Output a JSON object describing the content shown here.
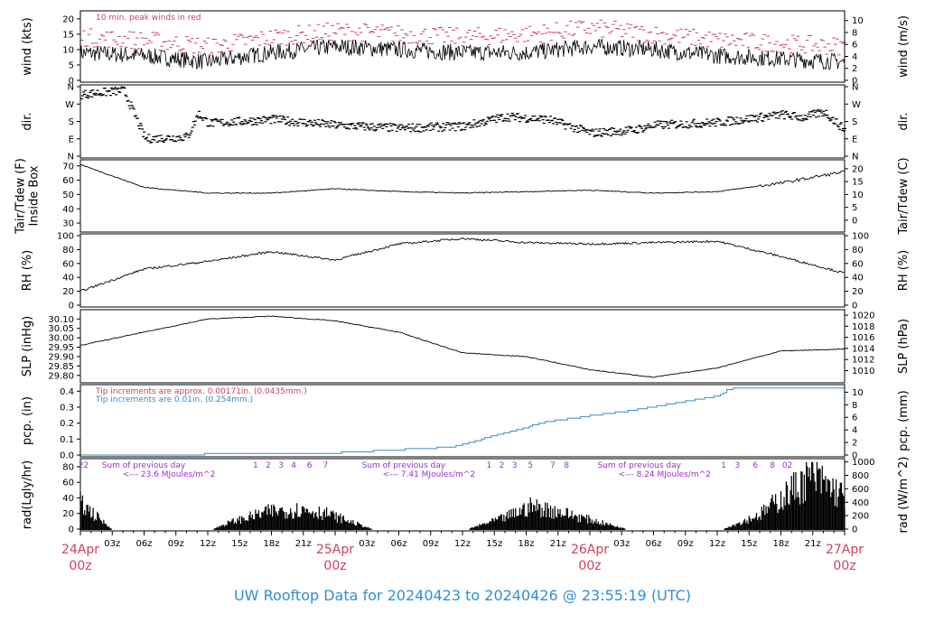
{
  "footer": "UW Rooftop Data for 20240423  to  20240426 @ 23:55:19  (UTC)",
  "colors": {
    "red": "#d04060",
    "blue": "#3a8cc8",
    "purple": "#9932cc",
    "footer": "#2f8fd4"
  },
  "chart_data": [
    {
      "id": "wind",
      "type": "line",
      "ylabel_left": "wind (kts)",
      "ylabel_right": "wind (m/s)",
      "ylim": [
        0,
        22
      ],
      "yticks_left": [
        "0",
        "5",
        "10",
        "15",
        "20"
      ],
      "yticks_right": [
        "0",
        "2",
        "4",
        "6",
        "8",
        "10"
      ],
      "annotation": "10 min. peak winds in red",
      "x": [
        0,
        6,
        12,
        18,
        24,
        30,
        36,
        42,
        48,
        54,
        60,
        66,
        72
      ],
      "series": [
        {
          "values": [
            9,
            8,
            6,
            9,
            11,
            10,
            9,
            9,
            11,
            10,
            8,
            7,
            6
          ]
        },
        {
          "values": [
            14,
            13,
            11,
            14,
            16,
            15,
            14,
            15,
            17,
            15,
            13,
            12,
            11
          ]
        }
      ]
    },
    {
      "id": "dir",
      "type": "scatter",
      "ylabel_left": "dir.",
      "ylabel_right": "dir.",
      "ylim": [
        0,
        360
      ],
      "yticks_left": [
        "N",
        "E",
        "S",
        "W",
        "N"
      ],
      "yticks_right": [
        "N",
        "E",
        "S",
        "W",
        "N"
      ],
      "x": [
        0,
        4,
        6,
        10,
        11,
        12,
        18,
        24,
        30,
        36,
        40,
        44,
        48,
        52,
        54,
        60,
        66,
        68,
        70,
        72
      ],
      "values": [
        320,
        340,
        90,
        100,
        220,
        170,
        190,
        160,
        145,
        155,
        205,
        190,
        120,
        135,
        160,
        175,
        215,
        200,
        230,
        130
      ]
    },
    {
      "id": "tair",
      "type": "line",
      "ylabel_left": "Tair/Tdew (F)\nInside Box",
      "ylabel_right": "Tair/Tdew (C)",
      "ylim": [
        25,
        73
      ],
      "yticks_left": [
        "30",
        "40",
        "50",
        "60",
        "70"
      ],
      "yticks_right": [
        "0",
        "5",
        "10",
        "15",
        "20"
      ],
      "x": [
        0,
        6,
        12,
        18,
        24,
        30,
        36,
        42,
        48,
        54,
        60,
        66,
        72
      ],
      "values": [
        71,
        55,
        51,
        51,
        54,
        52,
        51,
        52,
        53,
        51,
        52,
        58,
        66
      ]
    },
    {
      "id": "rh",
      "type": "line",
      "ylabel_left": "RH (%)",
      "ylabel_right": "RH (%)",
      "ylim": [
        0,
        100
      ],
      "yticks_left": [
        "0",
        "20",
        "40",
        "60",
        "80",
        "100"
      ],
      "yticks_right": [
        "0",
        "20",
        "40",
        "60",
        "80",
        "100"
      ],
      "x": [
        0,
        6,
        12,
        18,
        24,
        30,
        36,
        42,
        48,
        54,
        60,
        66,
        72
      ],
      "values": [
        20,
        52,
        63,
        77,
        65,
        88,
        96,
        90,
        88,
        90,
        92,
        70,
        46
      ]
    },
    {
      "id": "slp",
      "type": "line",
      "ylabel_left": "SLP (inHg)",
      "ylabel_right": "SLP (hPa)",
      "ylim": [
        29.77,
        30.14
      ],
      "yticks_left": [
        "29.80",
        "29.85",
        "29.90",
        "29.95",
        "30.00",
        "30.05",
        "30.10"
      ],
      "yticks_right": [
        "1010",
        "1012",
        "1014",
        "1016",
        "1018",
        "1020"
      ],
      "x": [
        0,
        6,
        12,
        18,
        24,
        30,
        36,
        42,
        48,
        54,
        60,
        66,
        72
      ],
      "values": [
        29.96,
        30.03,
        30.1,
        30.115,
        30.09,
        30.03,
        29.92,
        29.9,
        29.83,
        29.79,
        29.84,
        29.93,
        29.94
      ]
    },
    {
      "id": "pcp",
      "type": "line",
      "ylabel_left": "pcp. (in)",
      "ylabel_right": "pcp. (mm)",
      "ylim": [
        0,
        0.43
      ],
      "yticks_left": [
        "0.0",
        "0.1",
        "0.2",
        "0.3",
        "0.4"
      ],
      "yticks_right": [
        "0",
        "2",
        "4",
        "6",
        "8",
        "10"
      ],
      "notes": [
        "Tip increments are approx. 0.00171in. (0.0435mm.)",
        "Tip increments are 0.01in. (0.254mm.)"
      ],
      "x": [
        0,
        23,
        35,
        44,
        52,
        60,
        61,
        62,
        72
      ],
      "values": [
        0.0,
        0.01,
        0.05,
        0.21,
        0.28,
        0.37,
        0.41,
        0.42,
        0.42
      ]
    },
    {
      "id": "rad",
      "type": "area",
      "ylabel_left": "rad(Lgly/hr)",
      "ylabel_right": "rad (W/m^2)",
      "ylim": [
        0,
        88
      ],
      "yticks_left": [
        "0",
        "20",
        "40",
        "60",
        "80"
      ],
      "yticks_right": [
        "0",
        "200",
        "400",
        "600",
        "800",
        "1000"
      ],
      "hour_marks": [
        "22",
        "1",
        "2",
        "3",
        "4",
        "6",
        "7",
        "1",
        "2",
        "3",
        "5",
        "7",
        "8",
        "1",
        "3",
        "6",
        "8",
        "02"
      ],
      "sums": [
        {
          "line1": "Sum of previous day",
          "line2": "<--- 23.6 MJoules/m^2"
        },
        {
          "line1": "Sum of previous day",
          "line2": "<--- 7.41 MJoules/m^2"
        },
        {
          "line1": "Sum of previous day",
          "line2": "<--- 8.24 MJoules/m^2"
        }
      ],
      "x": [
        0,
        3,
        12.5,
        14,
        18,
        21,
        23,
        27.5,
        36.5,
        40,
        42.5,
        45,
        51.5,
        60.5,
        64,
        67,
        69,
        72
      ],
      "values": [
        40,
        0,
        0,
        10,
        28,
        30,
        25,
        0,
        0,
        18,
        35,
        27,
        0,
        0,
        22,
        60,
        82,
        50
      ]
    }
  ],
  "x_axis": {
    "hour_ticks": [
      "03z",
      "06z",
      "09z",
      "12z",
      "15z",
      "18z",
      "21z",
      "03z",
      "06z",
      "09z",
      "12z",
      "15z",
      "18z",
      "21z",
      "03z",
      "06z",
      "09z",
      "12z",
      "15z",
      "18z",
      "21z"
    ],
    "day_labels": [
      {
        "top": "24Apr",
        "bottom": "00z"
      },
      {
        "top": "25Apr",
        "bottom": "00z"
      },
      {
        "top": "26Apr",
        "bottom": "00z"
      },
      {
        "top": "27Apr",
        "bottom": "00z"
      }
    ]
  }
}
